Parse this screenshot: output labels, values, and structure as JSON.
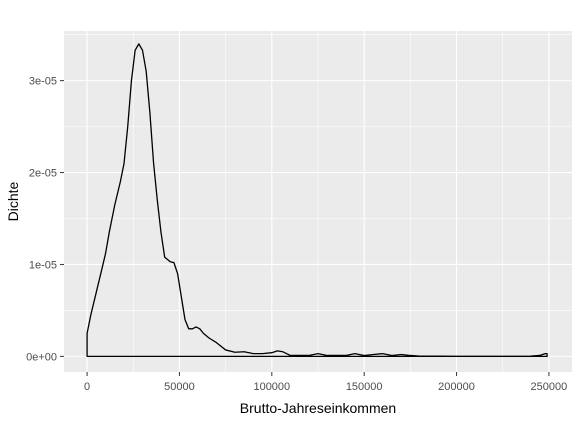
{
  "chart_data": {
    "type": "area",
    "title": "",
    "xlabel": "Brutto-Jahreseinkommen",
    "ylabel": "Dichte",
    "xlim": [
      -12500,
      262500
    ],
    "ylim": [
      -1.7e-06,
      3.54e-05
    ],
    "grid": true,
    "x_ticks": [
      {
        "value": 0,
        "label": "0"
      },
      {
        "value": 50000,
        "label": "50000"
      },
      {
        "value": 100000,
        "label": "100000"
      },
      {
        "value": 150000,
        "label": "150000"
      },
      {
        "value": 200000,
        "label": "200000"
      },
      {
        "value": 250000,
        "label": "250000"
      }
    ],
    "y_ticks": [
      {
        "value": 0,
        "label": "0e+00"
      },
      {
        "value": 1e-05,
        "label": "1e-05"
      },
      {
        "value": 2e-05,
        "label": "2e-05"
      },
      {
        "value": 3e-05,
        "label": "3e-05"
      }
    ],
    "series": [
      {
        "x": [
          0,
          2000,
          5000,
          8000,
          10000,
          12000,
          15000,
          18000,
          20000,
          22000,
          24000,
          26000,
          28000,
          30000,
          32000,
          34000,
          36000,
          38000,
          40000,
          42000,
          45000,
          47000,
          49000,
          51000,
          53000,
          55000,
          57000,
          59000,
          61000,
          63000,
          66000,
          70000,
          75000,
          80000,
          85000,
          90000,
          95000,
          100000,
          103000,
          106000,
          110000,
          115000,
          120000,
          125000,
          130000,
          135000,
          140000,
          145000,
          150000,
          155000,
          160000,
          165000,
          170000,
          175000,
          180000,
          190000,
          200000,
          210000,
          220000,
          230000,
          240000,
          245000,
          248000,
          249000
        ],
        "y": [
          2.5e-06,
          4.5e-06,
          7e-06,
          9.5e-06,
          1.12e-05,
          1.35e-05,
          1.65e-05,
          1.9e-05,
          2.1e-05,
          2.5e-05,
          3e-05,
          3.33e-05,
          3.4e-05,
          3.33e-05,
          3.1e-05,
          2.65e-05,
          2.1e-05,
          1.7e-05,
          1.35e-05,
          1.08e-05,
          1.03e-05,
          1.02e-05,
          9e-06,
          6.5e-06,
          4e-06,
          3e-06,
          3e-06,
          3.2e-06,
          3e-06,
          2.5e-06,
          2e-06,
          1.5e-06,
          7e-07,
          4.5e-07,
          5e-07,
          3e-07,
          3e-07,
          4e-07,
          6e-07,
          5e-07,
          1e-07,
          1e-07,
          1e-07,
          3e-07,
          1e-07,
          1e-07,
          1e-07,
          3e-07,
          1e-07,
          2e-07,
          3e-07,
          1e-07,
          2e-07,
          1e-07,
          3e-08,
          2e-08,
          1e-08,
          1e-08,
          1e-08,
          1e-08,
          2e-08,
          1e-07,
          3e-07,
          3e-07
        ]
      }
    ]
  },
  "colors": {
    "panel_background": "#ebebeb",
    "grid_major": "#ffffff",
    "line": "#000000",
    "tick_text": "#4d4d4d",
    "axis_title": "#000000"
  }
}
